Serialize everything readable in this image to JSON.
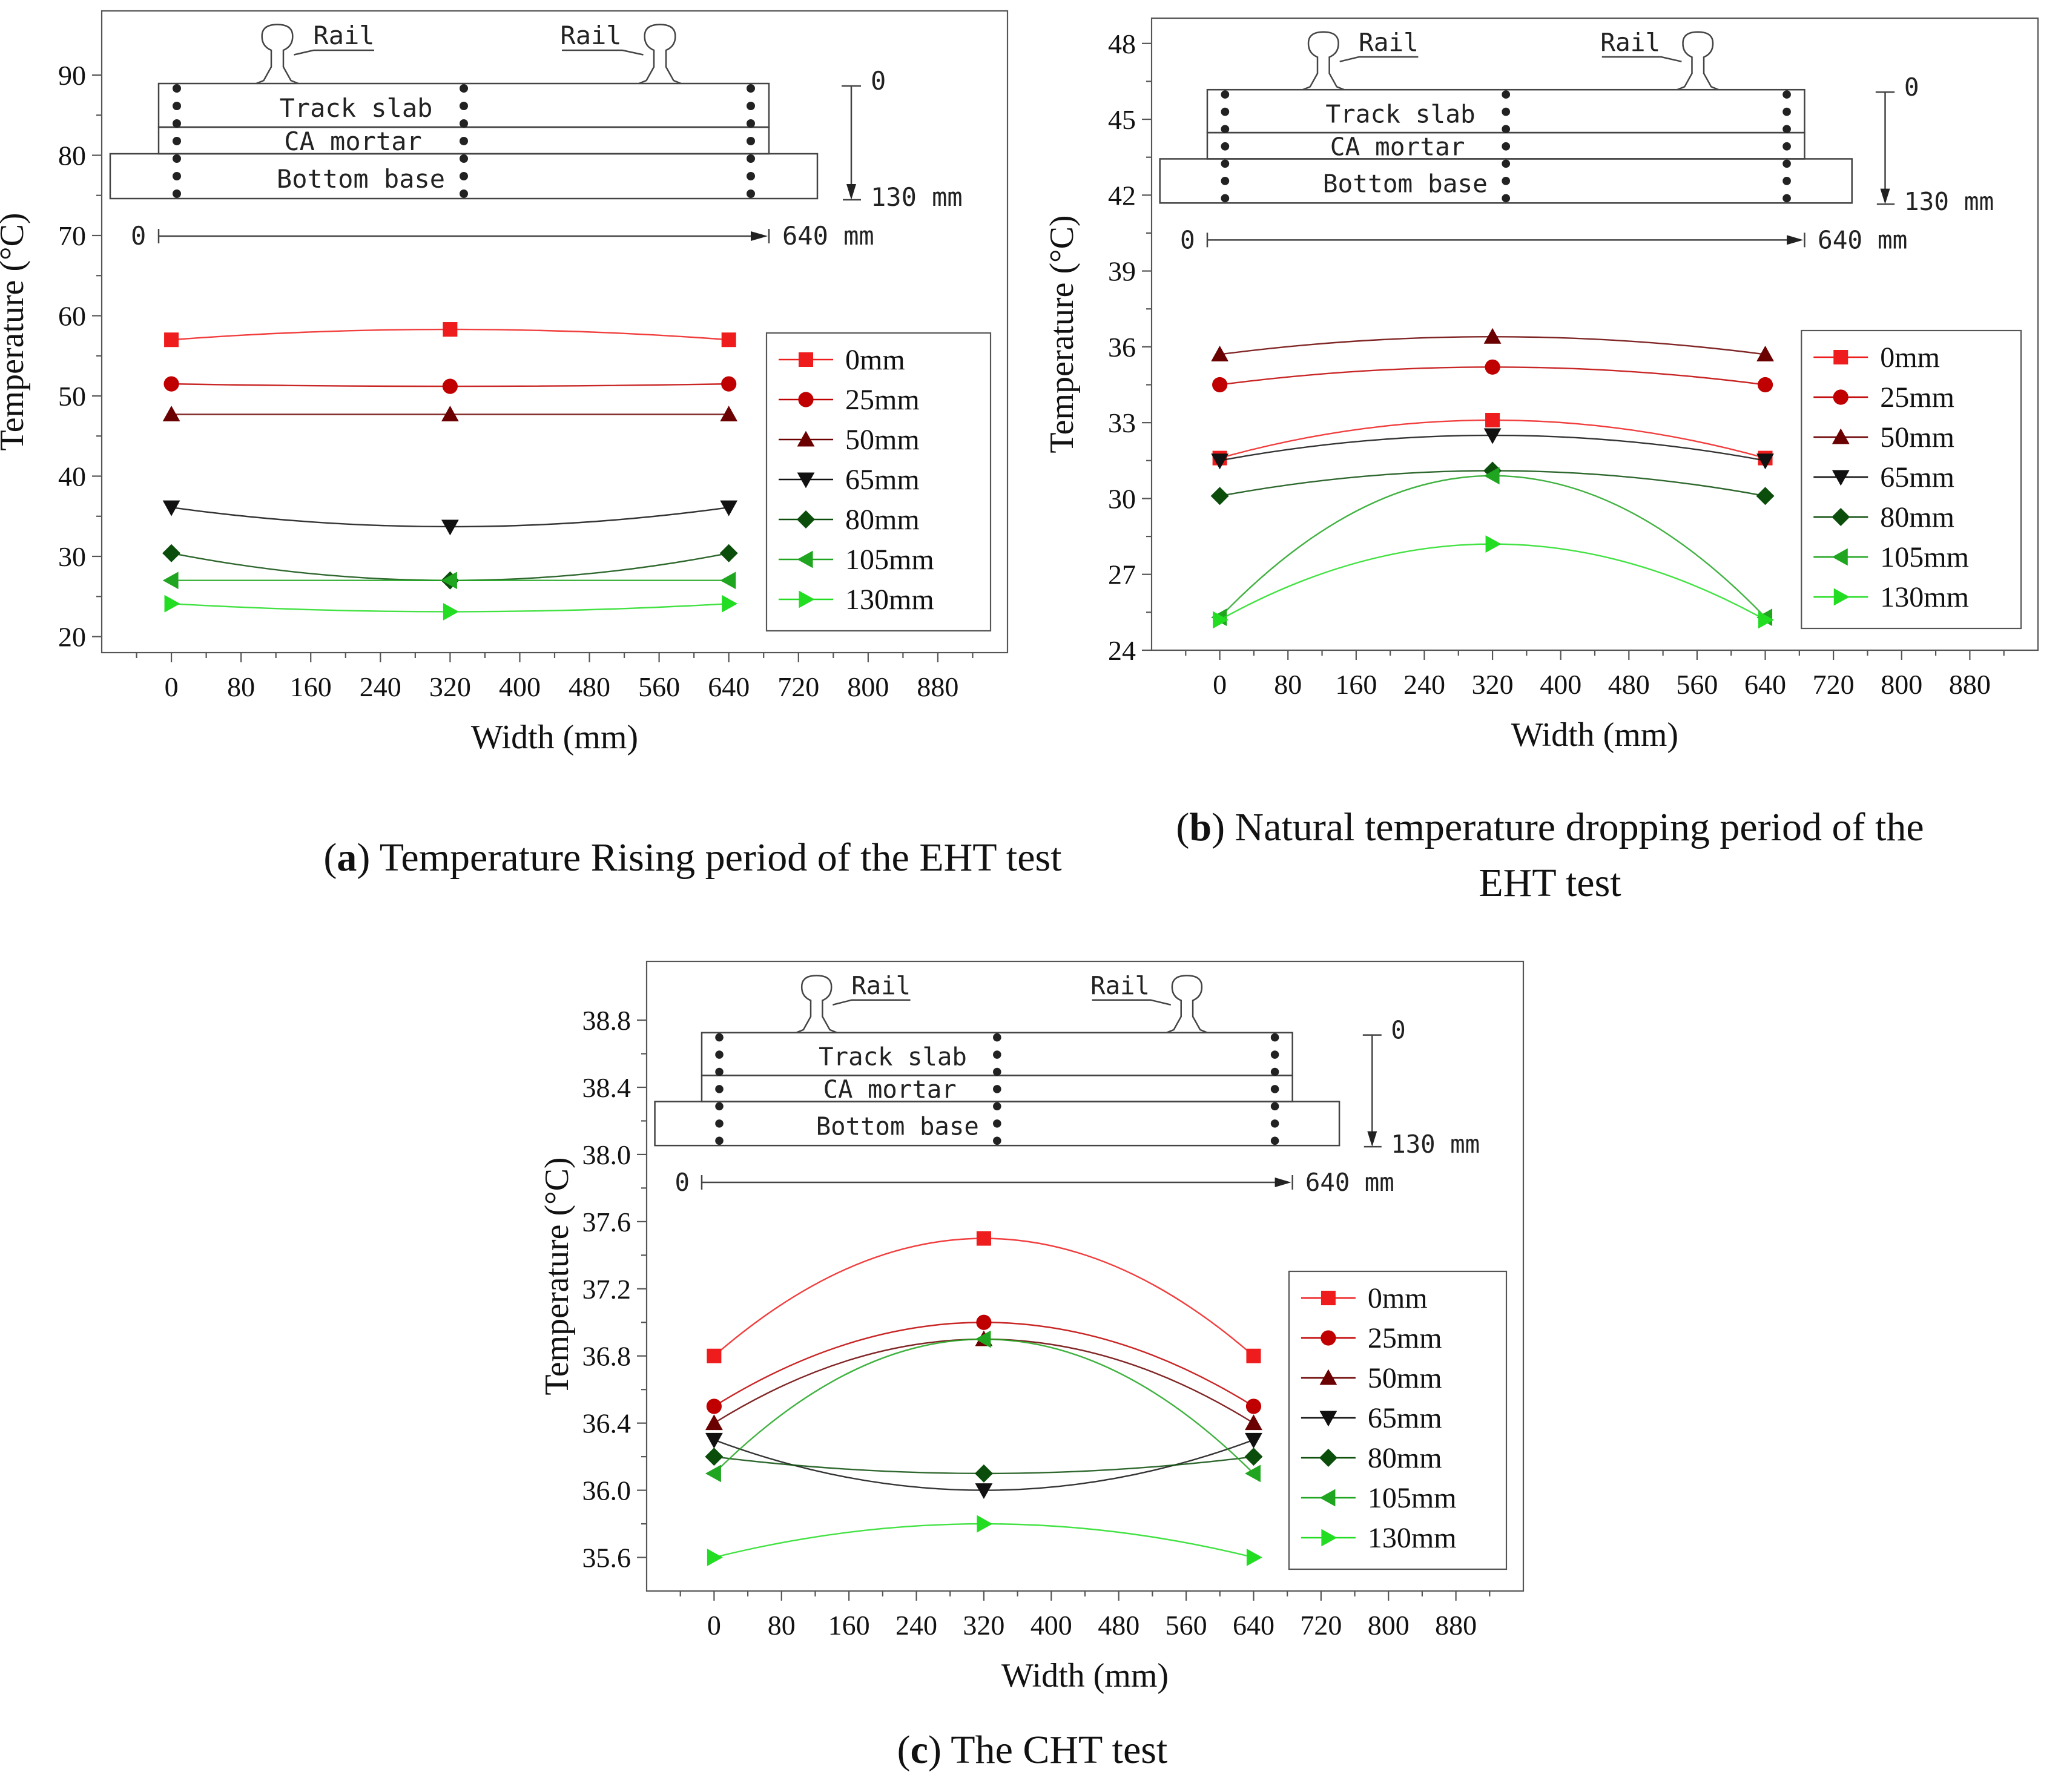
{
  "diagram": {
    "rail_label": "Rail",
    "track_slab": "Track slab",
    "ca_mortar": "CA mortar",
    "bottom_base": "Bottom base",
    "depth_top": "0",
    "depth_bottom": "130 mm",
    "width_start": "0",
    "width_end": "640 mm"
  },
  "captions": [
    {
      "letter": "a",
      "lines": [
        "Temperature Rising period of the EHT test"
      ]
    },
    {
      "letter": "b",
      "lines": [
        "Natural temperature dropping period of the",
        "EHT test"
      ]
    },
    {
      "letter": "c",
      "lines": [
        "The CHT test"
      ]
    }
  ],
  "chart_data": [
    {
      "type": "line",
      "xlabel": "Width (mm)",
      "ylabel": "Temperature (°C)",
      "xlim": [
        -80,
        960
      ],
      "ylim": [
        18,
        98
      ],
      "xticks": [
        0,
        80,
        160,
        240,
        320,
        400,
        480,
        560,
        640,
        720,
        800,
        880
      ],
      "yticks": [
        20,
        30,
        40,
        50,
        60,
        70,
        80,
        90
      ],
      "y_decimals": 0,
      "legend": "right",
      "x": [
        0,
        320,
        640
      ],
      "series": [
        {
          "name": "0mm",
          "values": [
            57,
            58.3,
            57
          ],
          "color": "#ee1c1c",
          "marker": "square"
        },
        {
          "name": "25mm",
          "values": [
            51.5,
            51.2,
            51.5
          ],
          "color": "#c00000",
          "marker": "circle"
        },
        {
          "name": "50mm",
          "values": [
            47.7,
            47.7,
            47.7
          ],
          "color": "#6b0000",
          "marker": "triangle-up"
        },
        {
          "name": "65mm",
          "values": [
            36.1,
            33.7,
            36.1
          ],
          "color": "#111111",
          "marker": "triangle-down"
        },
        {
          "name": "80mm",
          "values": [
            30.4,
            27.0,
            30.4
          ],
          "color": "#0b4d0b",
          "marker": "diamond"
        },
        {
          "name": "105mm",
          "values": [
            27,
            27,
            27
          ],
          "color": "#1fa51f",
          "marker": "triangle-left"
        },
        {
          "name": "130mm",
          "values": [
            24.1,
            23.1,
            24.1
          ],
          "color": "#22dd22",
          "marker": "triangle-right"
        }
      ]
    },
    {
      "type": "line",
      "xlabel": "Width (mm)",
      "ylabel": "Temperature (°C)",
      "xlim": [
        -80,
        960
      ],
      "ylim": [
        24,
        49
      ],
      "xticks": [
        0,
        80,
        160,
        240,
        320,
        400,
        480,
        560,
        640,
        720,
        800,
        880
      ],
      "yticks": [
        24,
        27,
        30,
        33,
        36,
        39,
        42,
        45,
        48
      ],
      "y_decimals": 0,
      "legend": "right",
      "x": [
        0,
        320,
        640
      ],
      "series": [
        {
          "name": "0mm",
          "values": [
            31.6,
            33.1,
            31.6
          ],
          "color": "#ee1c1c",
          "marker": "square"
        },
        {
          "name": "25mm",
          "values": [
            34.5,
            35.2,
            34.5
          ],
          "color": "#c00000",
          "marker": "circle"
        },
        {
          "name": "50mm",
          "values": [
            35.7,
            36.4,
            35.7
          ],
          "color": "#6b0000",
          "marker": "triangle-up"
        },
        {
          "name": "65mm",
          "values": [
            31.5,
            32.5,
            31.5
          ],
          "color": "#111111",
          "marker": "triangle-down"
        },
        {
          "name": "80mm",
          "values": [
            30.1,
            31.1,
            30.1
          ],
          "color": "#0b4d0b",
          "marker": "diamond"
        },
        {
          "name": "105mm",
          "values": [
            25.3,
            30.9,
            25.3
          ],
          "color": "#1fa51f",
          "marker": "triangle-left"
        },
        {
          "name": "130mm",
          "values": [
            25.2,
            28.2,
            25.2
          ],
          "color": "#22dd22",
          "marker": "triangle-right"
        }
      ]
    },
    {
      "type": "line",
      "xlabel": "Width (mm)",
      "ylabel": "Temperature (°C)",
      "xlim": [
        -80,
        960
      ],
      "ylim": [
        35.4,
        39.15
      ],
      "xticks": [
        0,
        80,
        160,
        240,
        320,
        400,
        480,
        560,
        640,
        720,
        800,
        880
      ],
      "yticks": [
        35.6,
        36.0,
        36.4,
        36.8,
        37.2,
        37.6,
        38.0,
        38.4,
        38.8
      ],
      "y_decimals": 1,
      "legend": "right",
      "x": [
        0,
        320,
        640
      ],
      "series": [
        {
          "name": "0mm",
          "values": [
            36.8,
            37.5,
            36.8
          ],
          "color": "#ee1c1c",
          "marker": "square"
        },
        {
          "name": "25mm",
          "values": [
            36.5,
            37.0,
            36.5
          ],
          "color": "#c00000",
          "marker": "circle"
        },
        {
          "name": "50mm",
          "values": [
            36.4,
            36.9,
            36.4
          ],
          "color": "#6b0000",
          "marker": "triangle-up"
        },
        {
          "name": "65mm",
          "values": [
            36.3,
            36.0,
            36.3
          ],
          "color": "#111111",
          "marker": "triangle-down"
        },
        {
          "name": "80mm",
          "values": [
            36.2,
            36.1,
            36.2
          ],
          "color": "#0b4d0b",
          "marker": "diamond"
        },
        {
          "name": "105mm",
          "values": [
            36.1,
            36.9,
            36.1
          ],
          "color": "#1fa51f",
          "marker": "triangle-left"
        },
        {
          "name": "130mm",
          "values": [
            35.6,
            35.8,
            35.6
          ],
          "color": "#22dd22",
          "marker": "triangle-right"
        }
      ]
    }
  ]
}
